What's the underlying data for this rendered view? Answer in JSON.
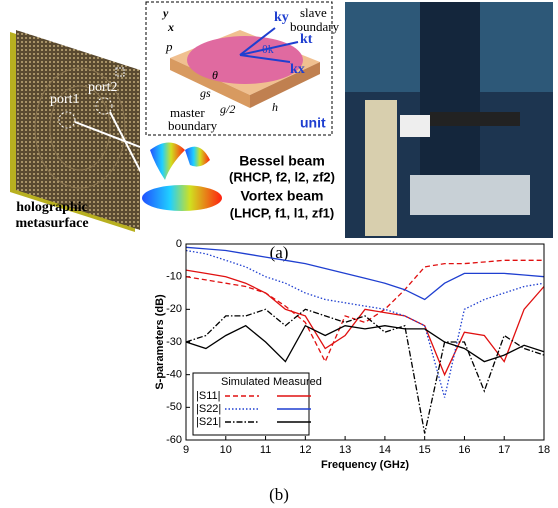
{
  "figure_a": {
    "port1": "port1",
    "port2": "port2",
    "metasurface": [
      "holographic",
      "metasurface"
    ],
    "slave": [
      "slave",
      "boundary"
    ],
    "master": [
      "master",
      "boundary"
    ],
    "unit": "unit",
    "p": "p",
    "gs": "gs",
    "g2": "g/2",
    "h": "h",
    "theta": "θ",
    "ky": "ky",
    "kt": "kt",
    "kx": "kx",
    "thetak": "θk",
    "axis_y": "y",
    "axis_x": "x",
    "bessel": [
      "Bessel beam",
      "(RHCP, f2, l2, zf2)"
    ],
    "vortex": [
      "Vortex beam",
      "(LHCP, f1, l1, zf1)"
    ],
    "caption": "(a)"
  },
  "caption_b": "(b)",
  "chart_data": {
    "type": "line",
    "x_label": "Frequency (GHz)",
    "y_label": "S-parameters (dB)",
    "x": [
      9,
      9.5,
      10,
      10.5,
      11,
      11.5,
      12,
      12.5,
      13,
      13.5,
      14,
      14.5,
      15,
      15.5,
      16,
      16.5,
      17,
      17.5,
      18
    ],
    "xlim": [
      9,
      18
    ],
    "ylim": [
      -60,
      0
    ],
    "xticks": [
      9,
      10,
      11,
      12,
      13,
      14,
      15,
      16,
      17,
      18
    ],
    "yticks": [
      0,
      -10,
      -20,
      -30,
      -40,
      -50,
      -60
    ],
    "legend_header": [
      "Simulated",
      "Measured"
    ],
    "series": [
      {
        "name": "|S11|",
        "kind": "Simulated",
        "color": "#e01010",
        "dash": "dashed",
        "values": [
          -10,
          -11,
          -12,
          -13,
          -15,
          -19,
          -24,
          -36,
          -22,
          -24,
          -20,
          -14,
          -7,
          -6,
          -6,
          -5.5,
          -5,
          -5,
          -5
        ]
      },
      {
        "name": "|S11|",
        "kind": "Measured",
        "color": "#e01010",
        "dash": "solid",
        "values": [
          -8,
          -9,
          -10,
          -12,
          -15,
          -20,
          -22,
          -32,
          -28,
          -20,
          -21,
          -22,
          -25,
          -40,
          -27,
          -28,
          -36,
          -20,
          -13
        ]
      },
      {
        "name": "|S22|",
        "kind": "Simulated",
        "color": "#1f3fd0",
        "dash": "dotted",
        "values": [
          -2,
          -3,
          -5,
          -7,
          -10,
          -12,
          -15,
          -17,
          -18,
          -19,
          -20,
          -22,
          -25,
          -47,
          -20,
          -17,
          -15,
          -13,
          -12
        ]
      },
      {
        "name": "|S22|",
        "kind": "Measured",
        "color": "#1f3fd0",
        "dash": "solid",
        "values": [
          -1,
          -1.5,
          -2,
          -3,
          -4,
          -5,
          -6,
          -7.5,
          -9,
          -10.5,
          -12,
          -14,
          -17,
          -12,
          -9,
          -9,
          -9,
          -9.5,
          -10
        ]
      },
      {
        "name": "|S21|",
        "kind": "Simulated",
        "color": "#000000",
        "dash": "dashdot",
        "values": [
          -30,
          -28,
          -22,
          -22,
          -20,
          -25,
          -20,
          -22,
          -24,
          -22,
          -27,
          -25,
          -58,
          -30,
          -30,
          -45,
          -28,
          -32,
          -34
        ]
      },
      {
        "name": "|S21|",
        "kind": "Measured",
        "color": "#000000",
        "dash": "solid",
        "values": [
          -30,
          -32,
          -28,
          -25,
          -30,
          -36,
          -25,
          -28,
          -25,
          -26,
          -25,
          -26,
          -26,
          -30,
          -32,
          -36,
          -34,
          -31,
          -33
        ]
      }
    ]
  }
}
